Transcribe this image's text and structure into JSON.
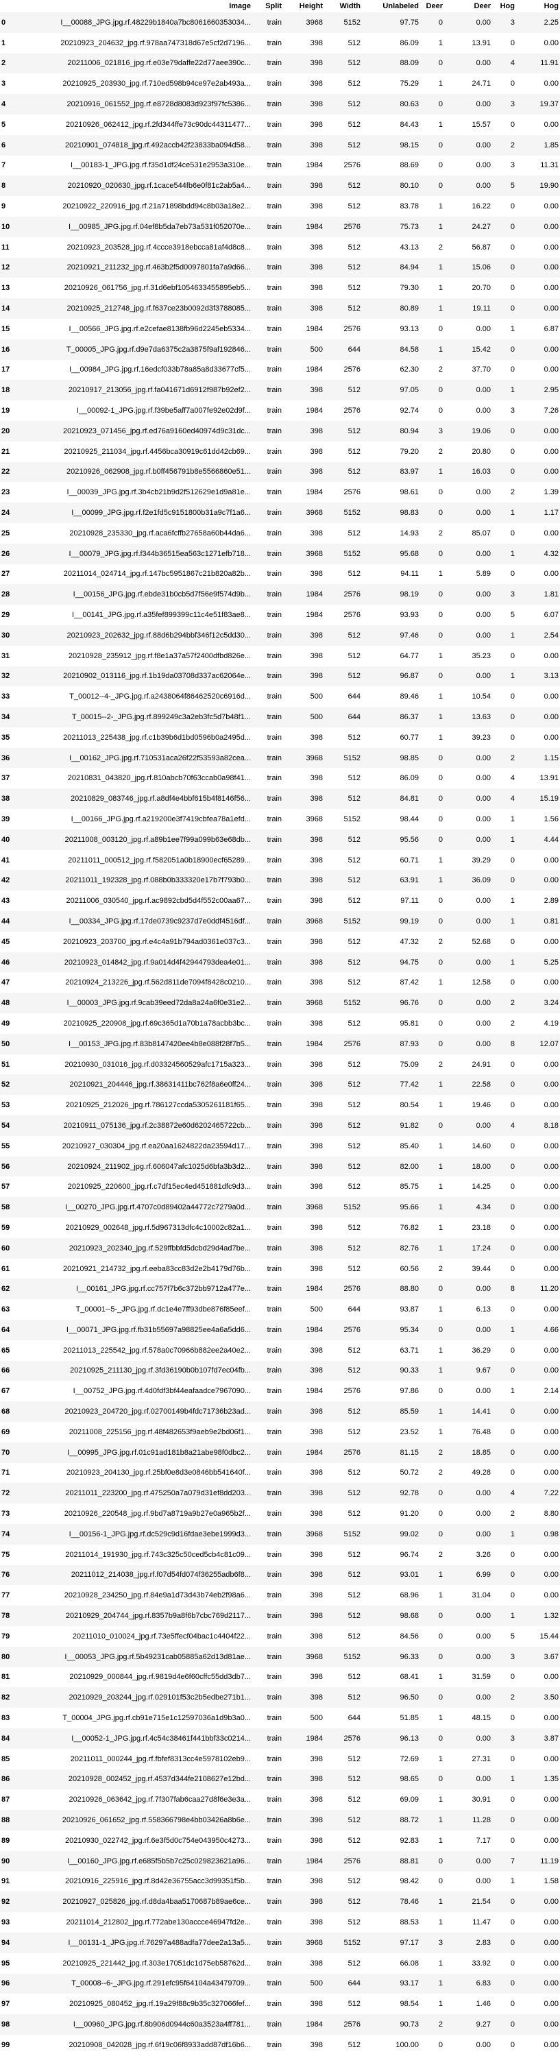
{
  "columns": [
    "",
    "Image",
    "Split",
    "Height",
    "Width",
    "Unlabeled",
    "Deer",
    "Deer",
    "Hog",
    "Hog"
  ],
  "rows": [
    [
      "0",
      "I__00088_JPG.jpg.rf.48229b1840a7bc8061660353034...",
      "train",
      "3968",
      "5152",
      "97.75",
      "0",
      "0.00",
      "3",
      "2.25"
    ],
    [
      "1",
      "20210923_204632_jpg.rf.978aa747318d67e5cf2d7196...",
      "train",
      "398",
      "512",
      "86.09",
      "1",
      "13.91",
      "0",
      "0.00"
    ],
    [
      "2",
      "20211006_021816_jpg.rf.e03e79daffe22d77aee390c...",
      "train",
      "398",
      "512",
      "88.09",
      "0",
      "0.00",
      "4",
      "11.91"
    ],
    [
      "3",
      "20210925_203930_jpg.rf.710ed598b94ce97e2ab493a...",
      "train",
      "398",
      "512",
      "75.29",
      "1",
      "24.71",
      "0",
      "0.00"
    ],
    [
      "4",
      "20210916_061552_jpg.rf.e8728d8083d923f97fc5386...",
      "train",
      "398",
      "512",
      "80.63",
      "0",
      "0.00",
      "3",
      "19.37"
    ],
    [
      "5",
      "20210926_062412_jpg.rf.2fd344ffe73c90dc44311477...",
      "train",
      "398",
      "512",
      "84.43",
      "1",
      "15.57",
      "0",
      "0.00"
    ],
    [
      "6",
      "20210901_074818_jpg.rf.492accb42f23833ba094d58...",
      "train",
      "398",
      "512",
      "98.15",
      "0",
      "0.00",
      "2",
      "1.85"
    ],
    [
      "7",
      "I__00183-1_JPG.jpg.rf.f35d1df24ce531e2953a310e...",
      "train",
      "1984",
      "2576",
      "88.69",
      "0",
      "0.00",
      "3",
      "11.31"
    ],
    [
      "8",
      "20210920_020630_jpg.rf.1cace544fb6e0f81c2ab5a4...",
      "train",
      "398",
      "512",
      "80.10",
      "0",
      "0.00",
      "5",
      "19.90"
    ],
    [
      "9",
      "20210922_220916_jpg.rf.21a71898bdd94c8b03a18e2...",
      "train",
      "398",
      "512",
      "83.78",
      "1",
      "16.22",
      "0",
      "0.00"
    ],
    [
      "10",
      "I__00985_JPG.jpg.rf.04ef8b5da7eb73a531f052070e...",
      "train",
      "1984",
      "2576",
      "75.73",
      "1",
      "24.27",
      "0",
      "0.00"
    ],
    [
      "11",
      "20210923_203528_jpg.rf.4ccce3918ebcca81af4d8c8...",
      "train",
      "398",
      "512",
      "43.13",
      "2",
      "56.87",
      "0",
      "0.00"
    ],
    [
      "12",
      "20210921_211232_jpg.rf.463b2f5d0097801fa7a9d66...",
      "train",
      "398",
      "512",
      "84.94",
      "1",
      "15.06",
      "0",
      "0.00"
    ],
    [
      "13",
      "20210926_061756_jpg.rf.31d6ebf1054633455895eb5...",
      "train",
      "398",
      "512",
      "79.30",
      "1",
      "20.70",
      "0",
      "0.00"
    ],
    [
      "14",
      "20210925_212748_jpg.rf.f637ce23b0092d3f3788085...",
      "train",
      "398",
      "512",
      "80.89",
      "1",
      "19.11",
      "0",
      "0.00"
    ],
    [
      "15",
      "I__00566_JPG.jpg.rf.e2cefae8138fb96d2245eb5334...",
      "train",
      "1984",
      "2576",
      "93.13",
      "0",
      "0.00",
      "1",
      "6.87"
    ],
    [
      "16",
      "T_00005_JPG.jpg.rf.d9e7da6375c2a3875f9af192846...",
      "train",
      "500",
      "644",
      "84.58",
      "1",
      "15.42",
      "0",
      "0.00"
    ],
    [
      "17",
      "I__00984_JPG.jpg.rf.16edcf033b78a85a8d33677cf5...",
      "train",
      "1984",
      "2576",
      "62.30",
      "2",
      "37.70",
      "0",
      "0.00"
    ],
    [
      "18",
      "20210917_213056_jpg.rf.fa041671d6912f987b92ef2...",
      "train",
      "398",
      "512",
      "97.05",
      "0",
      "0.00",
      "1",
      "2.95"
    ],
    [
      "19",
      "I__00092-1_JPG.jpg.rf.f39be5aff7a007fe92e02d9f...",
      "train",
      "1984",
      "2576",
      "92.74",
      "0",
      "0.00",
      "3",
      "7.26"
    ],
    [
      "20",
      "20210923_071456_jpg.rf.ed76a9160ed40974d9c31dc...",
      "train",
      "398",
      "512",
      "80.94",
      "3",
      "19.06",
      "0",
      "0.00"
    ],
    [
      "21",
      "20210925_211034_jpg.rf.4456bca30919c61dd42cb69...",
      "train",
      "398",
      "512",
      "79.20",
      "2",
      "20.80",
      "0",
      "0.00"
    ],
    [
      "22",
      "20210926_062908_jpg.rf.b0ff456791b8e5566860e51...",
      "train",
      "398",
      "512",
      "83.97",
      "1",
      "16.03",
      "0",
      "0.00"
    ],
    [
      "23",
      "I__00039_JPG.jpg.rf.3b4cb21b9d2f512629e1d9a81e...",
      "train",
      "1984",
      "2576",
      "98.61",
      "0",
      "0.00",
      "2",
      "1.39"
    ],
    [
      "24",
      "I__00099_JPG.jpg.rf.f2e1fd5c9151800b31a9c7f1a6...",
      "train",
      "3968",
      "5152",
      "98.83",
      "0",
      "0.00",
      "1",
      "1.17"
    ],
    [
      "25",
      "20210928_235330_jpg.rf.aca6fcffb27658a60b44da6...",
      "train",
      "398",
      "512",
      "14.93",
      "2",
      "85.07",
      "0",
      "0.00"
    ],
    [
      "26",
      "I__00079_JPG.jpg.rf.f344b36515ea563c1271efb718...",
      "train",
      "3968",
      "5152",
      "95.68",
      "0",
      "0.00",
      "1",
      "4.32"
    ],
    [
      "27",
      "20211014_024714_jpg.rf.147bc5951867c21b820a82b...",
      "train",
      "398",
      "512",
      "94.11",
      "1",
      "5.89",
      "0",
      "0.00"
    ],
    [
      "28",
      "I__00156_JPG.jpg.rf.ebde31b0cb5d7f56e9f574d9b...",
      "train",
      "1984",
      "2576",
      "98.19",
      "0",
      "0.00",
      "3",
      "1.81"
    ],
    [
      "29",
      "I__00141_JPG.jpg.rf.a35fef899399c11c4e51f83ae8...",
      "train",
      "1984",
      "2576",
      "93.93",
      "0",
      "0.00",
      "5",
      "6.07"
    ],
    [
      "30",
      "20210923_202632_jpg.rf.88d6b294bbf346f12c5dd30...",
      "train",
      "398",
      "512",
      "97.46",
      "0",
      "0.00",
      "1",
      "2.54"
    ],
    [
      "31",
      "20210928_235912_jpg.rf.f8e1a37a57f2400dfbd826e...",
      "train",
      "398",
      "512",
      "64.77",
      "1",
      "35.23",
      "0",
      "0.00"
    ],
    [
      "32",
      "20210902_013116_jpg.rf.1b19da03708d337ac62064e...",
      "train",
      "398",
      "512",
      "96.87",
      "0",
      "0.00",
      "1",
      "3.13"
    ],
    [
      "33",
      "T_00012--4-_JPG.jpg.rf.a2438064f86462520c6916d...",
      "train",
      "500",
      "644",
      "89.46",
      "1",
      "10.54",
      "0",
      "0.00"
    ],
    [
      "34",
      "T_00015--2-_JPG.jpg.rf.899249c3a2eb3fc5d7b48f1...",
      "train",
      "500",
      "644",
      "86.37",
      "1",
      "13.63",
      "0",
      "0.00"
    ],
    [
      "35",
      "20211013_225438_jpg.rf.c1b39b6d1bd0596b0a2495d...",
      "train",
      "398",
      "512",
      "60.77",
      "1",
      "39.23",
      "0",
      "0.00"
    ],
    [
      "36",
      "I__00162_JPG.jpg.rf.710531aca26f22f53593a82cea...",
      "train",
      "3968",
      "5152",
      "98.85",
      "0",
      "0.00",
      "2",
      "1.15"
    ],
    [
      "37",
      "20210831_043820_jpg.rf.810abcb70f63ccab0a98f41...",
      "train",
      "398",
      "512",
      "86.09",
      "0",
      "0.00",
      "4",
      "13.91"
    ],
    [
      "38",
      "20210829_083746_jpg.rf.a8df4e4bbf615b4f8146f56...",
      "train",
      "398",
      "512",
      "84.81",
      "0",
      "0.00",
      "4",
      "15.19"
    ],
    [
      "39",
      "I__00166_JPG.jpg.rf.a219200e3f7419cbfea78a1efd...",
      "train",
      "3968",
      "5152",
      "98.44",
      "0",
      "0.00",
      "1",
      "1.56"
    ],
    [
      "40",
      "20211008_003120_jpg.rf.a89b1ee7f99a099b63e68db...",
      "train",
      "398",
      "512",
      "95.56",
      "0",
      "0.00",
      "1",
      "4.44"
    ],
    [
      "41",
      "20211011_000512_jpg.rf.f582051a0b18900ecf65289...",
      "train",
      "398",
      "512",
      "60.71",
      "1",
      "39.29",
      "0",
      "0.00"
    ],
    [
      "42",
      "20211011_192328_jpg.rf.088b0b333320e17b7f793b0...",
      "train",
      "398",
      "512",
      "63.91",
      "1",
      "36.09",
      "0",
      "0.00"
    ],
    [
      "43",
      "20211006_030540_jpg.rf.ac9892cbd5d4f552c00aa67...",
      "train",
      "398",
      "512",
      "97.11",
      "0",
      "0.00",
      "1",
      "2.89"
    ],
    [
      "44",
      "I__00334_JPG.jpg.rf.17de0739c9237d7e0ddf4516df...",
      "train",
      "3968",
      "5152",
      "99.19",
      "0",
      "0.00",
      "1",
      "0.81"
    ],
    [
      "45",
      "20210923_203700_jpg.rf.e4c4a91b794ad0361e037c3...",
      "train",
      "398",
      "512",
      "47.32",
      "2",
      "52.68",
      "0",
      "0.00"
    ],
    [
      "46",
      "20210923_014842_jpg.rf.9a014d4f42944793dea4e01...",
      "train",
      "398",
      "512",
      "94.75",
      "0",
      "0.00",
      "1",
      "5.25"
    ],
    [
      "47",
      "20210924_213226_jpg.rf.562d811de7094f8428c0210...",
      "train",
      "398",
      "512",
      "87.42",
      "1",
      "12.58",
      "0",
      "0.00"
    ],
    [
      "48",
      "I__00003_JPG.jpg.rf.9cab39eed72da8a24a6f0e31e2...",
      "train",
      "3968",
      "5152",
      "96.76",
      "0",
      "0.00",
      "2",
      "3.24"
    ],
    [
      "49",
      "20210925_220908_jpg.rf.69c365d1a70b1a78acbb3bc...",
      "train",
      "398",
      "512",
      "95.81",
      "0",
      "0.00",
      "2",
      "4.19"
    ],
    [
      "50",
      "I__00153_JPG.jpg.rf.83b8147420ee4b8e088f28f7b5...",
      "train",
      "1984",
      "2576",
      "87.93",
      "0",
      "0.00",
      "8",
      "12.07"
    ],
    [
      "51",
      "20210930_031016_jpg.rf.d03324560529afc1715a323...",
      "train",
      "398",
      "512",
      "75.09",
      "2",
      "24.91",
      "0",
      "0.00"
    ],
    [
      "52",
      "20210921_204446_jpg.rf.38631411bc762f8a6e0ff24...",
      "train",
      "398",
      "512",
      "77.42",
      "1",
      "22.58",
      "0",
      "0.00"
    ],
    [
      "53",
      "20210925_212026_jpg.rf.786127ccda5305261181f65...",
      "train",
      "398",
      "512",
      "80.54",
      "1",
      "19.46",
      "0",
      "0.00"
    ],
    [
      "54",
      "20210911_075136_jpg.rf.2c38872e60d6202465722cb...",
      "train",
      "398",
      "512",
      "91.82",
      "0",
      "0.00",
      "4",
      "8.18"
    ],
    [
      "55",
      "20210927_030304_jpg.rf.ea20aa1624822da23594d17...",
      "train",
      "398",
      "512",
      "85.40",
      "1",
      "14.60",
      "0",
      "0.00"
    ],
    [
      "56",
      "20210924_211902_jpg.rf.606047afc1025d6bfa3b3d2...",
      "train",
      "398",
      "512",
      "82.00",
      "1",
      "18.00",
      "0",
      "0.00"
    ],
    [
      "57",
      "20210925_220600_jpg.rf.c7df15ec4ed451881dfc9d3...",
      "train",
      "398",
      "512",
      "85.75",
      "1",
      "14.25",
      "0",
      "0.00"
    ],
    [
      "58",
      "I__00270_JPG.jpg.rf.4707c0d89402a44772c7279a0d...",
      "train",
      "3968",
      "5152",
      "95.66",
      "1",
      "4.34",
      "0",
      "0.00"
    ],
    [
      "59",
      "20210929_002648_jpg.rf.5d967313dfc4c10002c82a1...",
      "train",
      "398",
      "512",
      "76.82",
      "1",
      "23.18",
      "0",
      "0.00"
    ],
    [
      "60",
      "20210923_202340_jpg.rf.529ffbbfd5dcbd29d4ad7be...",
      "train",
      "398",
      "512",
      "82.76",
      "1",
      "17.24",
      "0",
      "0.00"
    ],
    [
      "61",
      "20210921_214732_jpg.rf.eeba83cc83d2e2b4179d76b...",
      "train",
      "398",
      "512",
      "60.56",
      "2",
      "39.44",
      "0",
      "0.00"
    ],
    [
      "62",
      "I__00161_JPG.jpg.rf.cc757f7b6c372bb9712a477e...",
      "train",
      "1984",
      "2576",
      "88.80",
      "0",
      "0.00",
      "8",
      "11.20"
    ],
    [
      "63",
      "T_00001--5-_JPG.jpg.rf.dc1e4e7ff93dbe876f85eef...",
      "train",
      "500",
      "644",
      "93.87",
      "1",
      "6.13",
      "0",
      "0.00"
    ],
    [
      "64",
      "I__00071_JPG.jpg.rf.fb31b55697a98825ee4a6a5dd6...",
      "train",
      "1984",
      "2576",
      "95.34",
      "0",
      "0.00",
      "1",
      "4.66"
    ],
    [
      "65",
      "20211013_225542_jpg.rf.578a0c70966b882ee2a40e2...",
      "train",
      "398",
      "512",
      "63.71",
      "1",
      "36.29",
      "0",
      "0.00"
    ],
    [
      "66",
      "20210925_211130_jpg.rf.3fd36190b0b107fd7ec04fb...",
      "train",
      "398",
      "512",
      "90.33",
      "1",
      "9.67",
      "0",
      "0.00"
    ],
    [
      "67",
      "I__00752_JPG.jpg.rf.4d0fdf3bf44eafaadce7967090...",
      "train",
      "1984",
      "2576",
      "97.86",
      "0",
      "0.00",
      "1",
      "2.14"
    ],
    [
      "68",
      "20210923_204720_jpg.rf.02700149b4fdc71736b23ad...",
      "train",
      "398",
      "512",
      "85.59",
      "1",
      "14.41",
      "0",
      "0.00"
    ],
    [
      "69",
      "20211008_225156_jpg.rf.48f482653f9aeb9e2bd06f1...",
      "train",
      "398",
      "512",
      "23.52",
      "1",
      "76.48",
      "0",
      "0.00"
    ],
    [
      "70",
      "I__00995_JPG.jpg.rf.01c91ad181b8a21abe98f0dbc2...",
      "train",
      "1984",
      "2576",
      "81.15",
      "2",
      "18.85",
      "0",
      "0.00"
    ],
    [
      "71",
      "20210923_204130_jpg.rf.25bf0e8d3e0846bb541640f...",
      "train",
      "398",
      "512",
      "50.72",
      "2",
      "49.28",
      "0",
      "0.00"
    ],
    [
      "72",
      "20211011_223200_jpg.rf.475250a7a079d31ef8dd203...",
      "train",
      "398",
      "512",
      "92.78",
      "0",
      "0.00",
      "4",
      "7.22"
    ],
    [
      "73",
      "20210926_220548_jpg.rf.9bd7a8719a9b27e0a965b2f...",
      "train",
      "398",
      "512",
      "91.20",
      "0",
      "0.00",
      "2",
      "8.80"
    ],
    [
      "74",
      "I__00156-1_JPG.jpg.rf.dc529c9d16fdae3ebe1999d3...",
      "train",
      "3968",
      "5152",
      "99.02",
      "0",
      "0.00",
      "1",
      "0.98"
    ],
    [
      "75",
      "20211014_191930_jpg.rf.743c325c50ced5cb4c81c09...",
      "train",
      "398",
      "512",
      "96.74",
      "2",
      "3.26",
      "0",
      "0.00"
    ],
    [
      "76",
      "20211012_214038_jpg.rf.f07d54fd074f36255adb6f8...",
      "train",
      "398",
      "512",
      "93.01",
      "1",
      "6.99",
      "0",
      "0.00"
    ],
    [
      "77",
      "20210928_234250_jpg.rf.84e9a1d73d43b74eb2f98a6...",
      "train",
      "398",
      "512",
      "68.96",
      "1",
      "31.04",
      "0",
      "0.00"
    ],
    [
      "78",
      "20210929_204744_jpg.rf.8357b9a8f6b7cbc769d2117...",
      "train",
      "398",
      "512",
      "98.68",
      "0",
      "0.00",
      "1",
      "1.32"
    ],
    [
      "79",
      "20211010_010024_jpg.rf.73e5ffecf04bac1c4404f22...",
      "train",
      "398",
      "512",
      "84.56",
      "0",
      "0.00",
      "5",
      "15.44"
    ],
    [
      "80",
      "I__00053_JPG.jpg.rf.5b49231cab05885a62d13d81ae...",
      "train",
      "3968",
      "5152",
      "96.33",
      "0",
      "0.00",
      "3",
      "3.67"
    ],
    [
      "81",
      "20210929_000844_jpg.rf.9819d4e6f60cffc55dd3db7...",
      "train",
      "398",
      "512",
      "68.41",
      "1",
      "31.59",
      "0",
      "0.00"
    ],
    [
      "82",
      "20210929_203244_jpg.rf.029101f53c2b5edbe271b1...",
      "train",
      "398",
      "512",
      "96.50",
      "0",
      "0.00",
      "2",
      "3.50"
    ],
    [
      "83",
      "T_00004_JPG.jpg.rf.cb91e715e1c12597036a1d9b3a0...",
      "train",
      "500",
      "644",
      "51.85",
      "1",
      "48.15",
      "0",
      "0.00"
    ],
    [
      "84",
      "I__00052-1_JPG.jpg.rf.4c54c38461f441bbf33c0214...",
      "train",
      "1984",
      "2576",
      "96.13",
      "0",
      "0.00",
      "3",
      "3.87"
    ],
    [
      "85",
      "20211011_000244_jpg.rf.fbfef8313cc4e5978102eb9...",
      "train",
      "398",
      "512",
      "72.69",
      "1",
      "27.31",
      "0",
      "0.00"
    ],
    [
      "86",
      "20210928_002452_jpg.rf.4537d344fe2108627e12bd...",
      "train",
      "398",
      "512",
      "98.65",
      "0",
      "0.00",
      "1",
      "1.35"
    ],
    [
      "87",
      "20210926_063642_jpg.rf.7f307fab6caa27d8f6e3e3a...",
      "train",
      "398",
      "512",
      "69.09",
      "1",
      "30.91",
      "0",
      "0.00"
    ],
    [
      "88",
      "20210926_061652_jpg.rf.558366798e4bb03426a8b6e...",
      "train",
      "398",
      "512",
      "88.72",
      "1",
      "11.28",
      "0",
      "0.00"
    ],
    [
      "89",
      "20210930_022742_jpg.rf.6e3f5d0c754e043950c4273...",
      "train",
      "398",
      "512",
      "92.83",
      "1",
      "7.17",
      "0",
      "0.00"
    ],
    [
      "90",
      "I__00160_JPG.jpg.rf.e685f5b5b7c25c029823621a96...",
      "train",
      "1984",
      "2576",
      "88.81",
      "0",
      "0.00",
      "7",
      "11.19"
    ],
    [
      "91",
      "20210916_225916_jpg.rf.8d42e36755acc3d99351f5b...",
      "train",
      "398",
      "512",
      "98.42",
      "0",
      "0.00",
      "1",
      "1.58"
    ],
    [
      "92",
      "20210927_025826_jpg.rf.d8da4baa5170687b89ae6ce...",
      "train",
      "398",
      "512",
      "78.46",
      "1",
      "21.54",
      "0",
      "0.00"
    ],
    [
      "93",
      "20211014_212802_jpg.rf.772abe130accce46947fd2e...",
      "train",
      "398",
      "512",
      "88.53",
      "1",
      "11.47",
      "0",
      "0.00"
    ],
    [
      "94",
      "I__00131-1_JPG.jpg.rf.76297a488adfa77dee2a13a5...",
      "train",
      "3968",
      "5152",
      "97.17",
      "3",
      "2.83",
      "0",
      "0.00"
    ],
    [
      "95",
      "20210925_221442_jpg.rf.303e17051dc1d75eb58762d...",
      "train",
      "398",
      "512",
      "66.08",
      "1",
      "33.92",
      "0",
      "0.00"
    ],
    [
      "96",
      "T_00008--6-_JPG.jpg.rf.291efc95f64104a43479709...",
      "train",
      "500",
      "644",
      "93.17",
      "1",
      "6.83",
      "0",
      "0.00"
    ],
    [
      "97",
      "20210925_080452_jpg.rf.19a29f88c9b35c327066fef...",
      "train",
      "398",
      "512",
      "98.54",
      "1",
      "1.46",
      "0",
      "0.00"
    ],
    [
      "98",
      "I__00960_JPG.jpg.rf.8b906d0944c60a3523a4ff781...",
      "train",
      "1984",
      "2576",
      "90.73",
      "2",
      "9.27",
      "0",
      "0.00"
    ],
    [
      "99",
      "20210908_042028_jpg.rf.6f19c06f8933add87df16b6...",
      "train",
      "398",
      "512",
      "100.00",
      "0",
      "0.00",
      "0",
      "0.00"
    ]
  ]
}
